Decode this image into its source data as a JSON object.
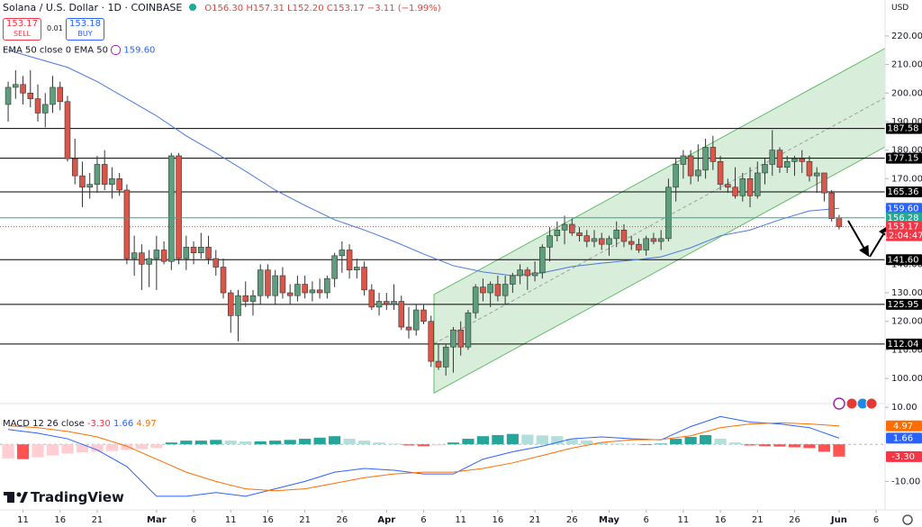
{
  "header": {
    "symbol": "Solana / U.S. Dollar · 1D · COINBASE",
    "ohlc": "O156.30 H157.31 L152.20 C153.17 −3.11 (−1.99%)",
    "sell_price": "153.17",
    "sell": "SELL",
    "spread": "0.01",
    "buy_price": "153.18",
    "buy": "BUY",
    "indicator": "EMA 50 close 0 EMA 50",
    "indicator_value": "159.60",
    "currency": "USD",
    "brand": "TradingView"
  },
  "chart_data": [
    {
      "type": "candlestick",
      "open": [
        196,
        202,
        203,
        200,
        198,
        193,
        196,
        202,
        197,
        177,
        171,
        167,
        168,
        175,
        168,
        170,
        166,
        142,
        144,
        140,
        142,
        145,
        141,
        178,
        142,
        146,
        144,
        146,
        142,
        139,
        130,
        122,
        129,
        127,
        129,
        138,
        129,
        136,
        130,
        129,
        133,
        130,
        131,
        130,
        135,
        143,
        145,
        138,
        139,
        131,
        125,
        127,
        126,
        127,
        118,
        117,
        124,
        120,
        106,
        104,
        111,
        117,
        111,
        123,
        132,
        130,
        133,
        129,
        133,
        136,
        138,
        136,
        137,
        146,
        150,
        152,
        154,
        151,
        150,
        148,
        149,
        147,
        149,
        152,
        148,
        147,
        145,
        149,
        148,
        149,
        167,
        175,
        178,
        171,
        173,
        181,
        176,
        168,
        167,
        164,
        170,
        164,
        172,
        175,
        180,
        174,
        176,
        177,
        176,
        171,
        172,
        165,
        156.3
      ],
      "high": [
        204,
        208,
        206,
        208,
        203,
        200,
        206,
        204,
        199,
        184,
        176,
        172,
        178,
        180,
        174,
        172,
        168,
        150,
        147,
        145,
        150,
        148,
        179,
        179,
        150,
        148,
        151,
        150,
        145,
        142,
        131,
        131,
        134,
        131,
        140,
        140,
        138,
        139,
        133,
        136,
        136,
        134,
        135,
        136,
        144,
        148,
        147,
        142,
        141,
        133,
        130,
        130,
        133,
        129,
        125,
        126,
        126,
        122,
        112,
        112,
        118,
        120,
        124,
        133,
        135,
        134,
        136,
        136,
        137,
        140,
        139,
        141,
        147,
        153,
        155,
        157,
        156,
        153,
        152,
        152,
        151,
        150,
        155,
        154,
        150,
        149,
        150,
        151,
        152,
        170,
        177,
        180,
        180,
        182,
        184,
        185,
        178,
        170,
        174,
        172,
        174,
        176,
        177,
        187,
        181,
        178,
        178,
        180,
        178,
        174,
        172,
        166,
        157.31
      ],
      "low": [
        190,
        198,
        196,
        195,
        190,
        188,
        193,
        194,
        176,
        168,
        160,
        163,
        165,
        166,
        163,
        164,
        140,
        136,
        131,
        132,
        131,
        140,
        138,
        140,
        138,
        140,
        142,
        140,
        136,
        128,
        116,
        113,
        125,
        122,
        126,
        128,
        126,
        128,
        126,
        127,
        128,
        127,
        128,
        128,
        132,
        137,
        135,
        135,
        129,
        124,
        122,
        124,
        124,
        117,
        114,
        115,
        119,
        104,
        103,
        101,
        102,
        108,
        110,
        121,
        127,
        125,
        127,
        126,
        130,
        133,
        131,
        134,
        135,
        141,
        148,
        147,
        150,
        148,
        146,
        146,
        145,
        143,
        146,
        146,
        145,
        144,
        143,
        147,
        145,
        148,
        162,
        170,
        168,
        169,
        170,
        173,
        166,
        165,
        163,
        162,
        160,
        163,
        168,
        171,
        172,
        172,
        171,
        172,
        169,
        165,
        162,
        155,
        152.2
      ],
      "close": [
        202,
        203,
        200,
        198,
        193,
        196,
        202,
        197,
        177,
        171,
        167,
        168,
        175,
        168,
        170,
        166,
        142,
        144,
        140,
        142,
        145,
        141,
        178,
        142,
        146,
        144,
        146,
        142,
        139,
        130,
        122,
        129,
        127,
        129,
        138,
        129,
        136,
        130,
        129,
        133,
        130,
        131,
        130,
        135,
        143,
        145,
        138,
        139,
        131,
        125,
        127,
        126,
        127,
        118,
        117,
        124,
        120,
        106,
        104,
        111,
        117,
        111,
        123,
        132,
        130,
        133,
        129,
        133,
        136,
        138,
        136,
        137,
        146,
        150,
        152,
        154,
        151,
        150,
        148,
        149,
        147,
        149,
        152,
        148,
        147,
        145,
        149,
        148,
        149,
        167,
        175,
        178,
        171,
        173,
        181,
        176,
        168,
        167,
        164,
        170,
        164,
        172,
        175,
        180,
        174,
        176,
        177,
        176,
        171,
        172,
        165,
        156,
        153.17
      ],
      "up_color": "#5e9e7c",
      "down_color": "#d8574a",
      "xlim": [
        -1.1,
        118.2
      ],
      "ylim": [
        91.5,
        232.6
      ],
      "yticks": [
        {
          "value": 220,
          "label": "220.00"
        },
        {
          "value": 210,
          "label": "210.00"
        },
        {
          "value": 200,
          "label": "200.00"
        },
        {
          "value": 190,
          "label": "190.00"
        },
        {
          "value": 180,
          "label": "180.00"
        },
        {
          "value": 170,
          "label": "170.00"
        },
        {
          "value": 160,
          "label": "160.00"
        },
        {
          "value": 150,
          "label": "150.00"
        },
        {
          "value": 140,
          "label": "140.00"
        },
        {
          "value": 130,
          "label": "130.00"
        },
        {
          "value": 120,
          "label": "120.00"
        },
        {
          "value": 110,
          "label": "110.00"
        },
        {
          "value": 100,
          "label": "100.00"
        }
      ],
      "xticks": [
        {
          "value": 2,
          "label": "11"
        },
        {
          "value": 7,
          "label": "16"
        },
        {
          "value": 12,
          "label": "21"
        },
        {
          "value": 20,
          "label": "Mar"
        },
        {
          "value": 25,
          "label": "6"
        },
        {
          "value": 30,
          "label": "11"
        },
        {
          "value": 35,
          "label": "16"
        },
        {
          "value": 40,
          "label": "21"
        },
        {
          "value": 45,
          "label": "26"
        },
        {
          "value": 51,
          "label": "Apr"
        },
        {
          "value": 56,
          "label": "6"
        },
        {
          "value": 61,
          "label": "11"
        },
        {
          "value": 66,
          "label": "16"
        },
        {
          "value": 71,
          "label": "21"
        },
        {
          "value": 76,
          "label": "26"
        },
        {
          "value": 81,
          "label": "May"
        },
        {
          "value": 86,
          "label": "6"
        },
        {
          "value": 91,
          "label": "11"
        },
        {
          "value": 96,
          "label": "16"
        },
        {
          "value": 101,
          "label": "21"
        },
        {
          "value": 106,
          "label": "26"
        },
        {
          "value": 112,
          "label": "Jun"
        },
        {
          "value": 117,
          "label": "6"
        }
      ],
      "ema": {
        "color": "#4a78e0",
        "x": [
          0,
          4,
          8,
          12,
          16,
          20,
          24,
          28,
          32,
          36,
          40,
          44,
          48,
          52,
          56,
          60,
          64,
          68,
          72,
          76,
          80,
          84,
          88,
          92,
          96,
          100,
          104,
          108,
          112
        ],
        "values": [
          215,
          212,
          209,
          204,
          198,
          192,
          185,
          179,
          172.6,
          166,
          160.6,
          155.6,
          152,
          148,
          143.6,
          139.5,
          137.3,
          136,
          137,
          139.2,
          140.4,
          141.4,
          142.6,
          145.8,
          150,
          152,
          155.6,
          158.7,
          159.6
        ]
      },
      "channel": {
        "x": [
          57.4,
          121.7
        ],
        "top": [
          129.4,
          220.6
        ],
        "bottom": [
          94.9,
          186.1
        ],
        "color": "#66bb6a"
      },
      "levels": [
        187.58,
        177.15,
        165.36,
        {
          "value": 141.6,
          "label": "141.60"
        },
        125.95,
        112.04
      ],
      "markers": [
        {
          "value": 159.6,
          "label": "159.60",
          "color": "#2962ff"
        },
        {
          "value": 156.28,
          "color": "#22ab94",
          "line": "solid"
        },
        {
          "value": 153.17,
          "color": "#f23645",
          "line": "dotted",
          "countdown": "12:04:47"
        }
      ]
    },
    {
      "type": "macd",
      "title": "MACD 12 26 close",
      "xlim": [
        -1.1,
        118.2
      ],
      "ylim": [
        -16.7,
        10.5
      ],
      "yticks": [
        {
          "value": 10,
          "label": "10.00"
        },
        {
          "value": -10,
          "label": "-10.00"
        }
      ],
      "series": [
        {
          "kind": "histogram",
          "colors": [
            "#26a69a",
            "#b2dfdb",
            "#ffcdd2",
            "#ff5252"
          ],
          "color": "#f23645",
          "last": {
            "value": -3.3,
            "label": "-3.30"
          },
          "x": [
            0,
            2,
            4,
            6,
            8,
            10,
            12,
            14,
            16,
            18,
            20,
            22,
            24,
            26,
            28,
            30,
            32,
            34,
            36,
            38,
            40,
            42,
            44,
            46,
            48,
            50,
            52,
            54,
            56,
            58,
            60,
            62,
            64,
            66,
            68,
            70,
            72,
            74,
            76,
            78,
            80,
            82,
            84,
            86,
            88,
            90,
            92,
            94,
            96,
            98,
            100,
            102,
            104,
            106,
            108,
            110,
            112
          ],
          "values": [
            -3.8,
            -4,
            -3.5,
            -3,
            -2.5,
            -2.2,
            -2,
            -1.8,
            -1.5,
            -1.3,
            -1,
            0.5,
            1,
            1,
            1.2,
            1,
            0.8,
            0.8,
            1,
            1.2,
            1.5,
            1.8,
            2.2,
            1.5,
            1,
            0.5,
            0.2,
            -0.3,
            -0.5,
            -0.3,
            0.5,
            1.5,
            2.2,
            2.5,
            2.8,
            2.6,
            2.4,
            2.2,
            1.5,
            1,
            0.5,
            0.2,
            0.1,
            -0.2,
            0.2,
            1.5,
            2,
            2.5,
            1.5,
            0.5,
            -0.3,
            -0.5,
            -0.6,
            -0.8,
            -1,
            -2,
            -3.3
          ]
        },
        {
          "kind": "line",
          "color": "#2962ff",
          "last": 1.66,
          "x": [
            0,
            4,
            8,
            12,
            16,
            20,
            24,
            28,
            32,
            36,
            40,
            44,
            48,
            52,
            56,
            60,
            64,
            68,
            72,
            76,
            80,
            84,
            88,
            92,
            96,
            100,
            104,
            108,
            112
          ],
          "values": [
            4,
            3,
            1.5,
            -1.5,
            -6,
            -14,
            -14,
            -13,
            -14,
            -12,
            -10,
            -7.5,
            -6.5,
            -7,
            -8,
            -8,
            -4,
            -2,
            -0.5,
            1.5,
            2,
            1.5,
            1.2,
            4.8,
            7.5,
            6,
            5.5,
            4.5,
            1.66
          ]
        },
        {
          "kind": "line",
          "color": "#ff6d00",
          "last": 4.97,
          "x": [
            0,
            4,
            8,
            12,
            16,
            20,
            24,
            28,
            32,
            36,
            40,
            44,
            48,
            52,
            56,
            60,
            64,
            68,
            72,
            76,
            80,
            84,
            88,
            92,
            96,
            100,
            104,
            108,
            112
          ],
          "values": [
            5,
            4.5,
            3.5,
            2,
            -0.5,
            -4,
            -7.5,
            -10,
            -12,
            -12.5,
            -12,
            -10.5,
            -9,
            -8,
            -7.5,
            -7.5,
            -6.5,
            -5,
            -3,
            -1,
            0.5,
            1.2,
            1.3,
            2.3,
            4.5,
            5.5,
            5.8,
            5.5,
            4.97
          ]
        }
      ]
    }
  ]
}
